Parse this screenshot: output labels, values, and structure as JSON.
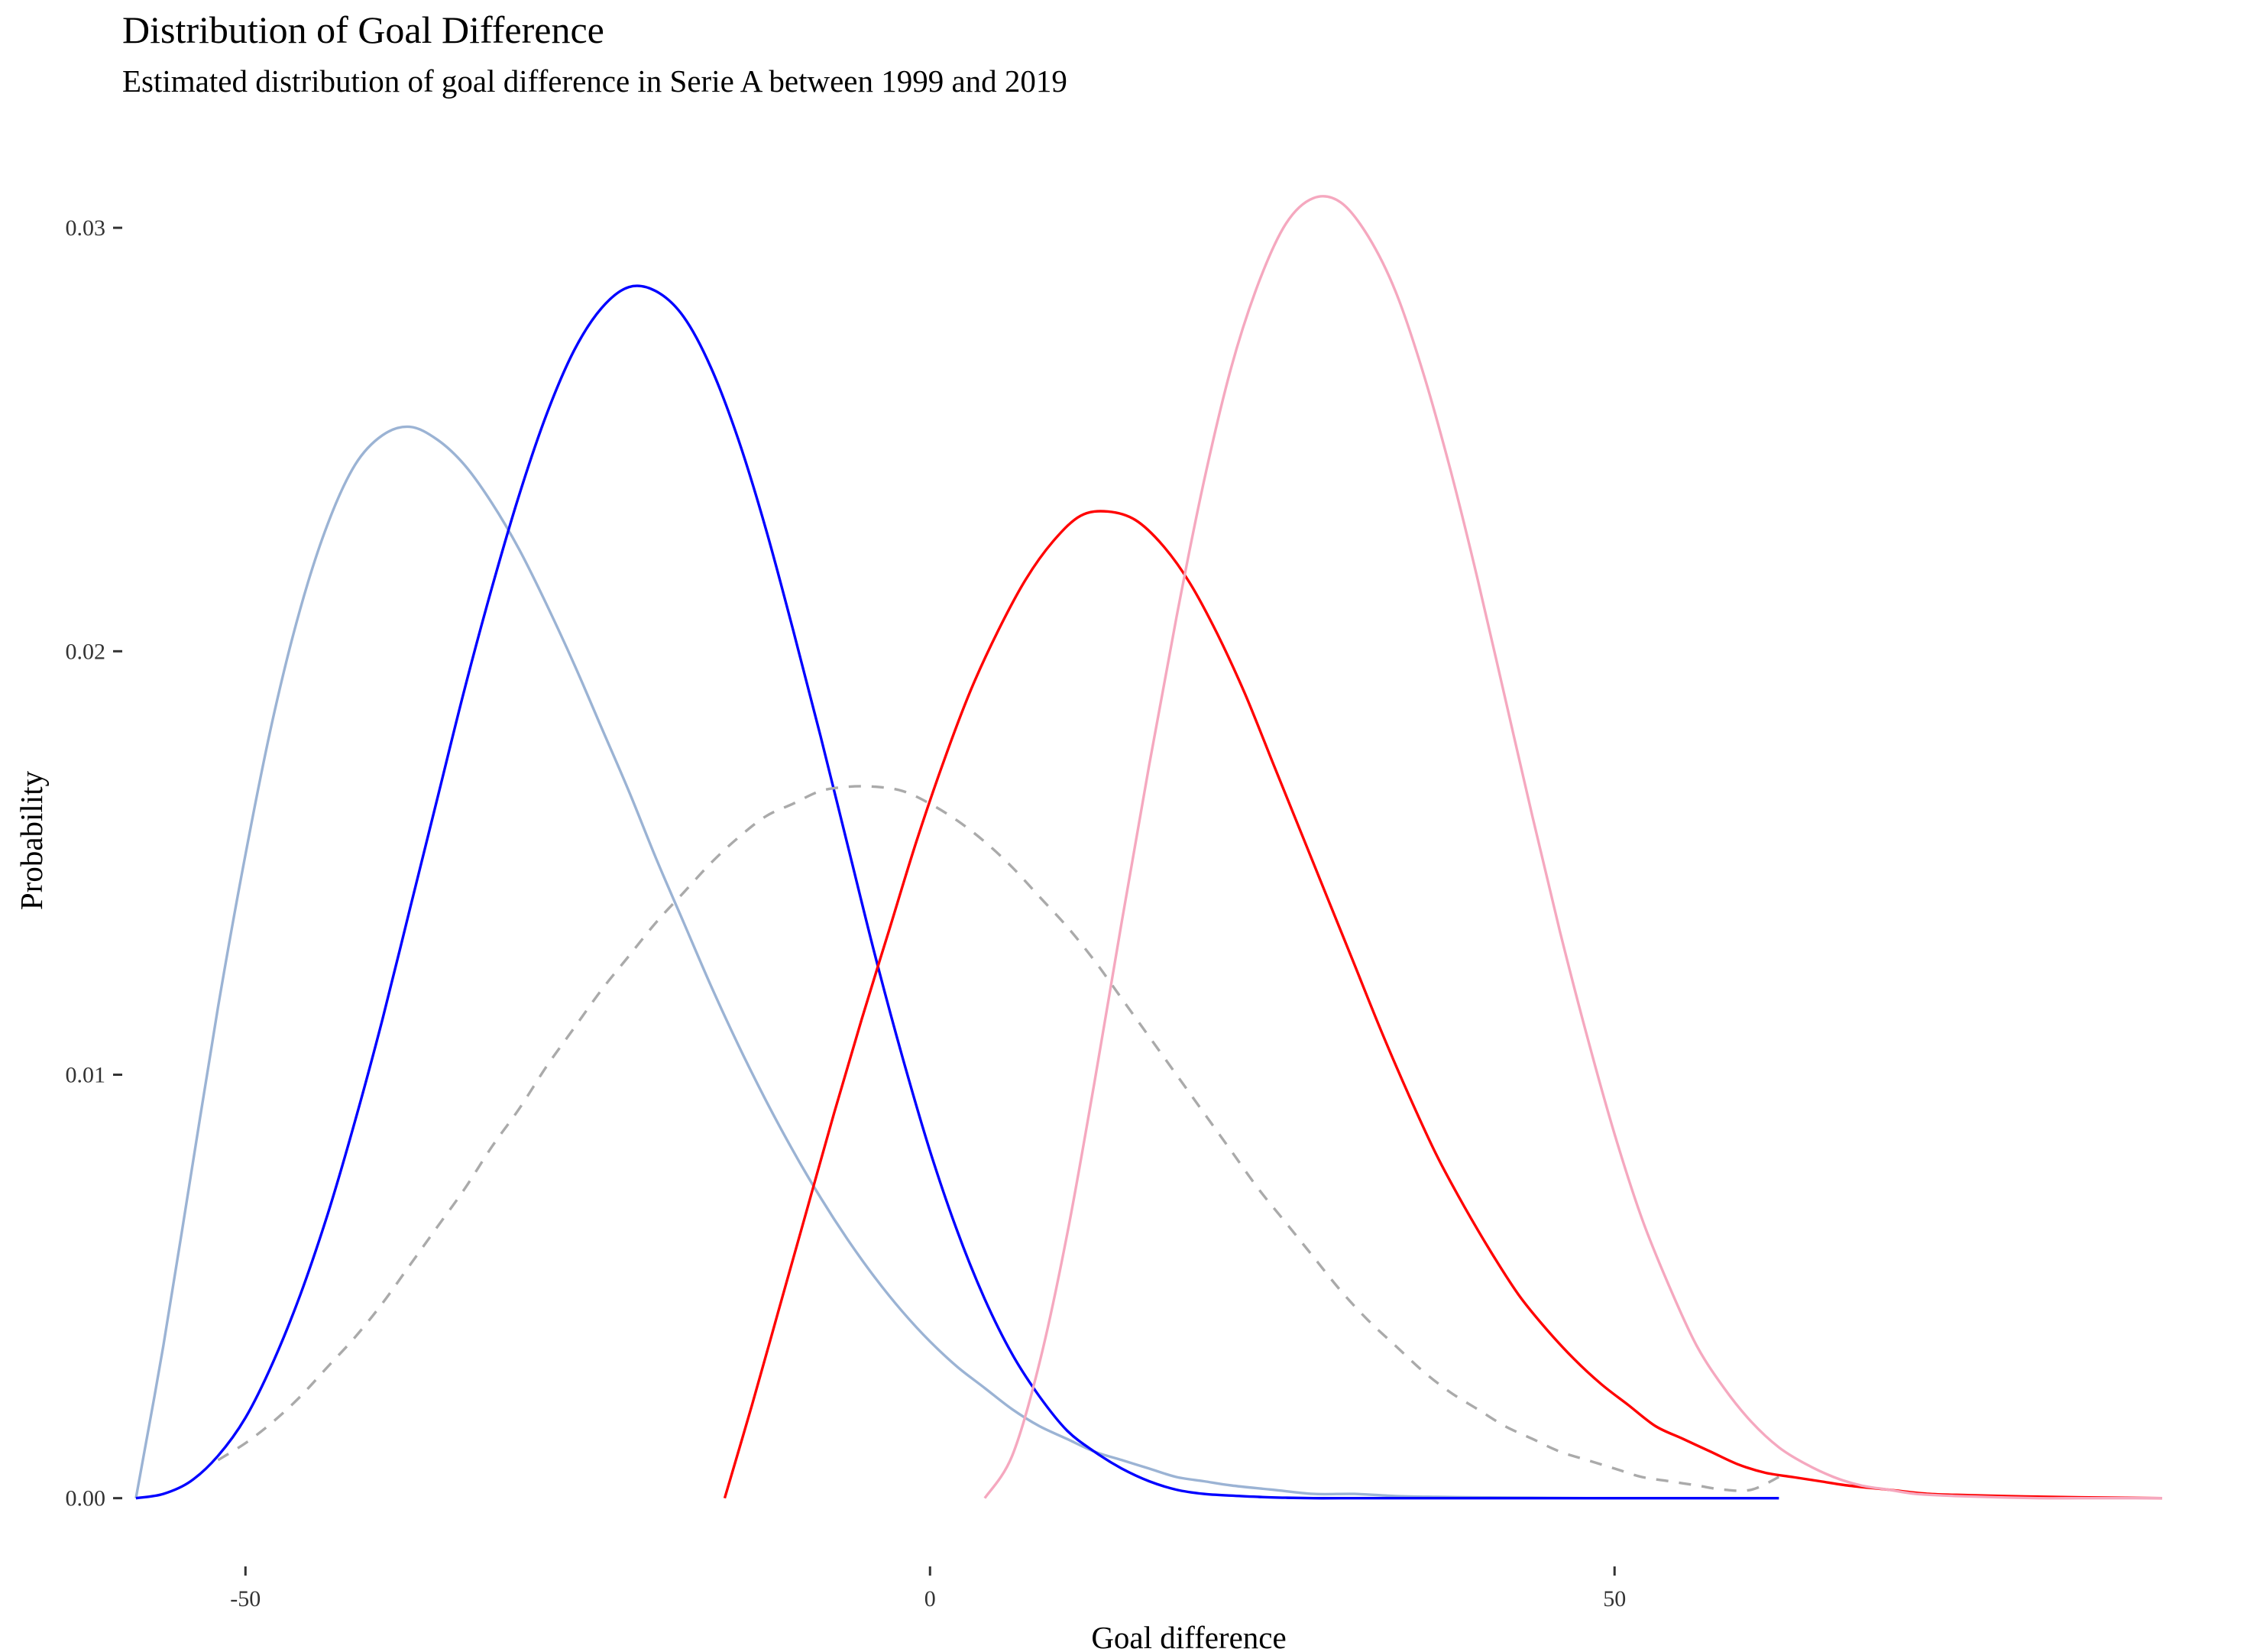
{
  "title": "Distribution of Goal Difference",
  "subtitle": "Estimated distribution of goal difference in Serie A between 1999 and 2019",
  "chart_data": {
    "type": "line",
    "title": "Distribution of Goal Difference",
    "subtitle": "Estimated distribution of goal difference in Serie A between 1999 and 2019",
    "xlabel": "Goal difference",
    "ylabel": "Probability",
    "xlim": [
      -59,
      90
    ],
    "ylim": [
      -0.0008,
      0.0315
    ],
    "x_ticks": [
      -50,
      0,
      50
    ],
    "x_tick_labels": [
      "-50",
      "0",
      "50"
    ],
    "y_ticks": [
      0.0,
      0.01,
      0.02,
      0.03
    ],
    "y_tick_labels": [
      "0.00",
      "0.01",
      "0.02",
      "0.03"
    ],
    "grid": false,
    "legend": "none",
    "series": [
      {
        "color": "#9bb3d4",
        "dash": "solid",
        "x": [
          -58,
          -56,
          -54,
          -52,
          -50,
          -48,
          -46,
          -44,
          -42,
          -40,
          -38,
          -36,
          -34,
          -32,
          -30,
          -28,
          -26,
          -24,
          -22,
          -20,
          -18,
          -16,
          -14,
          -12,
          -10,
          -8,
          -6,
          -4,
          -2,
          0,
          2,
          4,
          6,
          8,
          10,
          12,
          14,
          16,
          18,
          20,
          22,
          25,
          28,
          31,
          34,
          37,
          40,
          44,
          48,
          52,
          56,
          62
        ],
        "y": [
          0.0,
          0.0036,
          0.0076,
          0.0116,
          0.0152,
          0.0184,
          0.021,
          0.023,
          0.0244,
          0.0251,
          0.0253,
          0.025,
          0.0244,
          0.0235,
          0.0224,
          0.0211,
          0.0197,
          0.0182,
          0.0167,
          0.0151,
          0.0136,
          0.0121,
          0.0107,
          0.0094,
          0.0082,
          0.0071,
          0.0061,
          0.0052,
          0.0044,
          0.0037,
          0.0031,
          0.0026,
          0.0021,
          0.0017,
          0.0014,
          0.0011,
          0.0009,
          0.0007,
          0.0005,
          0.0004,
          0.0003,
          0.0002,
          0.0001,
          0.0001,
          5e-05,
          3e-05,
          2e-05,
          1e-05,
          0.0,
          0.0,
          0.0,
          0.0
        ]
      },
      {
        "color": "#0000ff",
        "dash": "solid",
        "x": [
          -58,
          -56,
          -54,
          -52,
          -50,
          -48,
          -46,
          -44,
          -42,
          -40,
          -38,
          -36,
          -34,
          -32,
          -30,
          -28,
          -26,
          -24,
          -22,
          -20,
          -18,
          -16,
          -14,
          -12,
          -10,
          -8,
          -6,
          -4,
          -2,
          0,
          2,
          4,
          6,
          8,
          10,
          12,
          14,
          16,
          18,
          20,
          22,
          24,
          26,
          28,
          30,
          33,
          36,
          40,
          45,
          50,
          55,
          62
        ],
        "y": [
          0.0,
          0.0001,
          0.0004,
          0.001,
          0.0019,
          0.0032,
          0.0048,
          0.0067,
          0.0089,
          0.0113,
          0.0139,
          0.0165,
          0.0191,
          0.0215,
          0.0237,
          0.0256,
          0.0271,
          0.0281,
          0.0286,
          0.0285,
          0.0279,
          0.0267,
          0.025,
          0.0229,
          0.0205,
          0.018,
          0.0154,
          0.0128,
          0.0104,
          0.0082,
          0.0063,
          0.0047,
          0.0034,
          0.0024,
          0.0016,
          0.0011,
          0.0007,
          0.0004,
          0.0002,
          0.0001,
          6e-05,
          3e-05,
          1e-05,
          0.0,
          0.0,
          0.0,
          0.0,
          0.0,
          0.0,
          0.0,
          0.0,
          0.0
        ]
      },
      {
        "color": "#aaaaaa",
        "dash": "dashed",
        "x": [
          -52,
          -50,
          -48,
          -46,
          -44,
          -42,
          -40,
          -38,
          -36,
          -34,
          -32,
          -30,
          -28,
          -26,
          -24,
          -22,
          -20,
          -18,
          -16,
          -14,
          -12,
          -10,
          -8,
          -6,
          -4,
          -2,
          0,
          2,
          4,
          6,
          8,
          10,
          12,
          14,
          16,
          18,
          20,
          22,
          24,
          26,
          28,
          30,
          32,
          34,
          36,
          38,
          40,
          42,
          44,
          46,
          48,
          50,
          52,
          54,
          56,
          58,
          60,
          62
        ],
        "y": [
          0.0009,
          0.0013,
          0.0018,
          0.0024,
          0.0031,
          0.0038,
          0.0046,
          0.0055,
          0.0064,
          0.0073,
          0.0083,
          0.0092,
          0.0102,
          0.0111,
          0.012,
          0.0128,
          0.0136,
          0.0143,
          0.015,
          0.0156,
          0.0161,
          0.0164,
          0.0167,
          0.0168,
          0.0168,
          0.0167,
          0.0164,
          0.016,
          0.0155,
          0.0149,
          0.0142,
          0.0135,
          0.0127,
          0.0118,
          0.0109,
          0.01,
          0.0091,
          0.0082,
          0.0073,
          0.0065,
          0.0057,
          0.0049,
          0.0042,
          0.0036,
          0.003,
          0.0025,
          0.0021,
          0.0017,
          0.0014,
          0.0011,
          0.0009,
          0.0007,
          0.0005,
          0.0004,
          0.0003,
          0.0002,
          0.0002,
          0.0005
        ]
      },
      {
        "color": "#ff0000",
        "dash": "solid",
        "x": [
          -15,
          -13,
          -11,
          -9,
          -7,
          -5,
          -3,
          -1,
          1,
          3,
          5,
          7,
          9,
          11,
          13,
          15,
          17,
          19,
          21,
          23,
          25,
          27,
          29,
          31,
          33,
          35,
          37,
          39,
          41,
          43,
          45,
          47,
          49,
          51,
          53,
          55,
          57,
          59,
          61,
          63,
          65,
          67,
          70,
          73,
          76,
          80,
          84,
          90
        ],
        "y": [
          0.0,
          0.0022,
          0.0045,
          0.0068,
          0.0091,
          0.0113,
          0.0134,
          0.0155,
          0.0174,
          0.0191,
          0.0205,
          0.0217,
          0.0226,
          0.0232,
          0.0233,
          0.0231,
          0.0225,
          0.0216,
          0.0204,
          0.019,
          0.0174,
          0.0158,
          0.0142,
          0.0126,
          0.011,
          0.0095,
          0.0081,
          0.0069,
          0.0058,
          0.0048,
          0.004,
          0.0033,
          0.0027,
          0.0022,
          0.0017,
          0.0014,
          0.0011,
          0.0008,
          0.0006,
          0.0005,
          0.0004,
          0.0003,
          0.0002,
          0.0001,
          7e-05,
          4e-05,
          2e-05,
          0.0
        ]
      },
      {
        "color": "#f5a8bf",
        "dash": "solid",
        "x": [
          4,
          6,
          8,
          10,
          12,
          14,
          16,
          18,
          20,
          22,
          24,
          26,
          28,
          30,
          32,
          34,
          36,
          38,
          40,
          42,
          44,
          46,
          48,
          50,
          52,
          54,
          56,
          58,
          60,
          62,
          64,
          66,
          68,
          70,
          72,
          75,
          78,
          81,
          84,
          87,
          90
        ],
        "y": [
          0.0,
          0.001,
          0.0032,
          0.0062,
          0.0098,
          0.0136,
          0.0173,
          0.0208,
          0.024,
          0.0267,
          0.0287,
          0.0301,
          0.0307,
          0.0306,
          0.0298,
          0.0285,
          0.0266,
          0.0243,
          0.0217,
          0.0189,
          0.0161,
          0.0134,
          0.0109,
          0.0086,
          0.0066,
          0.005,
          0.0036,
          0.0026,
          0.0018,
          0.0012,
          0.0008,
          0.0005,
          0.0003,
          0.0002,
          0.0001,
          5e-05,
          2e-05,
          0.0,
          0.0,
          0.0,
          0.0
        ]
      }
    ]
  }
}
